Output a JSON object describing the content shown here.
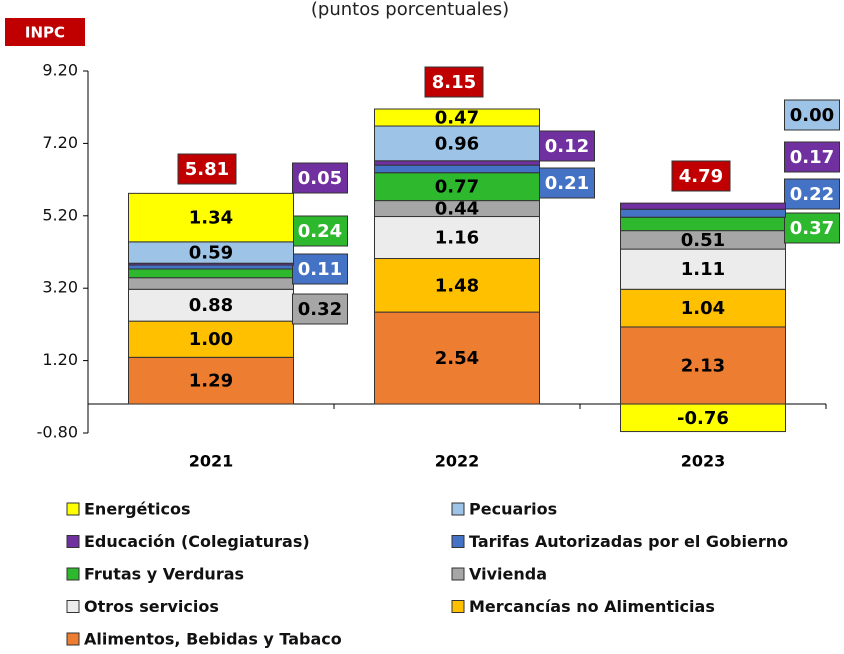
{
  "chart_data": {
    "type": "bar",
    "stacked": true,
    "subtitle": "(puntos porcentuales)",
    "total_label": "INPC",
    "categories": [
      "2021",
      "2022",
      "2023"
    ],
    "ylim": [
      -0.8,
      9.2
    ],
    "yticks": [
      {
        "value": -0.8,
        "label": "-0.80"
      },
      {
        "value": 1.2,
        "label": "1.20"
      },
      {
        "value": 3.2,
        "label": "3.20"
      },
      {
        "value": 5.2,
        "label": "5.20"
      },
      {
        "value": 7.2,
        "label": "7.20"
      },
      {
        "value": 9.2,
        "label": "9.20"
      }
    ],
    "totals": [
      5.81,
      8.15,
      4.79
    ],
    "totals_color": "#c00000",
    "series": [
      {
        "name": "Alimentos, Bebidas y Tabaco",
        "color": "#ed7d31",
        "values": [
          1.29,
          2.54,
          2.13
        ],
        "value_labels": [
          "1.29",
          "2.54",
          "2.13"
        ]
      },
      {
        "name": "Mercancías no Alimenticias",
        "color": "#ffc000",
        "values": [
          1.0,
          1.48,
          1.04
        ],
        "value_labels": [
          "1.00",
          "1.48",
          "1.04"
        ]
      },
      {
        "name": "Otros servicios",
        "color": "#ececec",
        "values": [
          0.88,
          1.16,
          1.11
        ],
        "value_labels": [
          "0.88",
          "1.16",
          "1.11"
        ]
      },
      {
        "name": "Vivienda",
        "color": "#a6a6a6",
        "values": [
          0.32,
          0.44,
          0.51
        ],
        "value_labels": [
          "0.32",
          "0.44",
          "0.51"
        ]
      },
      {
        "name": "Frutas y Verduras",
        "color": "#2db82d",
        "values": [
          0.24,
          0.77,
          0.37
        ],
        "value_labels": [
          "0.24",
          "0.77",
          "0.37"
        ]
      },
      {
        "name": "Tarifas Autorizadas por el Gobierno",
        "color": "#4472c4",
        "values": [
          0.11,
          0.21,
          0.22
        ],
        "value_labels": [
          "0.11",
          "0.21",
          "0.22"
        ]
      },
      {
        "name": "Educación (Colegiaturas)",
        "color": "#7030a0",
        "values": [
          0.05,
          0.12,
          0.17
        ],
        "value_labels": [
          "0.05",
          "0.12",
          "0.17"
        ]
      },
      {
        "name": "Pecuarios",
        "color": "#9dc3e6",
        "values": [
          0.59,
          0.96,
          0.0
        ],
        "value_labels": [
          "0.59",
          "0.96",
          "0.00"
        ]
      },
      {
        "name": "Energéticos",
        "color": "#ffff00",
        "values": [
          1.34,
          0.47,
          -0.76
        ],
        "value_labels": [
          "1.34",
          "0.47",
          "-0.76"
        ]
      }
    ]
  }
}
